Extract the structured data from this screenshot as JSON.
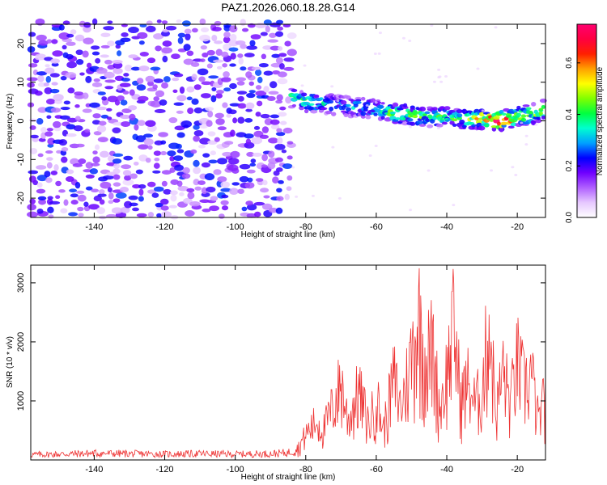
{
  "figure_title": "PAZ1.2026.060.18.28.G14",
  "chart_data": [
    {
      "type": "heatmap",
      "title": "PAZ1.2026.060.18.28.G14",
      "xlabel": "Height of straight line (km)",
      "ylabel": "Frequency (Hz)",
      "xlim": [
        -158,
        -12
      ],
      "ylim": [
        -25,
        25
      ],
      "xticks": [
        -140,
        -120,
        -100,
        -80,
        -60,
        -40,
        -20
      ],
      "yticks": [
        -20,
        -10,
        0,
        10,
        20
      ],
      "noise_region_x": [
        -158,
        -84
      ],
      "signal_track": {
        "x": [
          -84,
          -80,
          -75,
          -70,
          -65,
          -60,
          -55,
          -50,
          -45,
          -40,
          -35,
          -30,
          -25,
          -20,
          -15,
          -12
        ],
        "freq": [
          6,
          5,
          4.5,
          4,
          3.5,
          3,
          2,
          1.5,
          1,
          1,
          0.5,
          0.5,
          0,
          1,
          2,
          3
        ],
        "amplitude": [
          0.35,
          0.38,
          0.32,
          0.3,
          0.33,
          0.3,
          0.45,
          0.42,
          0.4,
          0.38,
          0.4,
          0.55,
          0.7,
          0.5,
          0.45,
          0.5
        ]
      },
      "colorbar": {
        "label": "Normalized spectral amplitude",
        "range": [
          0,
          0.75
        ],
        "ticks": [
          0.0,
          0.2,
          0.4,
          0.6
        ],
        "colors": [
          "#ffffff",
          "#e6c8ff",
          "#b060ff",
          "#7000ff",
          "#0000ff",
          "#00a0ff",
          "#00ffd0",
          "#00ff40",
          "#80ff00",
          "#ffff00",
          "#ffa000",
          "#ff2000",
          "#ff0040",
          "#ff0070"
        ]
      }
    },
    {
      "type": "line",
      "xlabel": "Height of straight line (km)",
      "ylabel": "SNR (10 * v/v)",
      "xlim": [
        -158,
        -12
      ],
      "ylim": [
        0,
        3300
      ],
      "xticks": [
        -140,
        -120,
        -100,
        -80,
        -60,
        -40,
        -20
      ],
      "yticks": [
        1000,
        2000,
        3000
      ],
      "color": "#ee3333",
      "series": [
        {
          "name": "SNR",
          "x": [
            -158,
            -150,
            -140,
            -130,
            -120,
            -110,
            -100,
            -90,
            -85,
            -82,
            -80,
            -77,
            -75,
            -72,
            -70,
            -68,
            -65,
            -62,
            -60,
            -58,
            -55,
            -53,
            -50,
            -48,
            -46,
            -44,
            -42,
            -40,
            -38,
            -36,
            -34,
            -32,
            -30,
            -28,
            -26,
            -24,
            -22,
            -20,
            -18,
            -16,
            -14,
            -12
          ],
          "y": [
            120,
            130,
            150,
            140,
            130,
            140,
            130,
            140,
            160,
            300,
            600,
            900,
            700,
            1300,
            1800,
            900,
            1600,
            800,
            1500,
            700,
            1900,
            1200,
            2400,
            3300,
            2300,
            2600,
            1200,
            2000,
            3100,
            1400,
            1800,
            1300,
            1600,
            3200,
            1100,
            2100,
            1300,
            2300,
            1700,
            2000,
            900,
            1500
          ]
        }
      ]
    }
  ]
}
